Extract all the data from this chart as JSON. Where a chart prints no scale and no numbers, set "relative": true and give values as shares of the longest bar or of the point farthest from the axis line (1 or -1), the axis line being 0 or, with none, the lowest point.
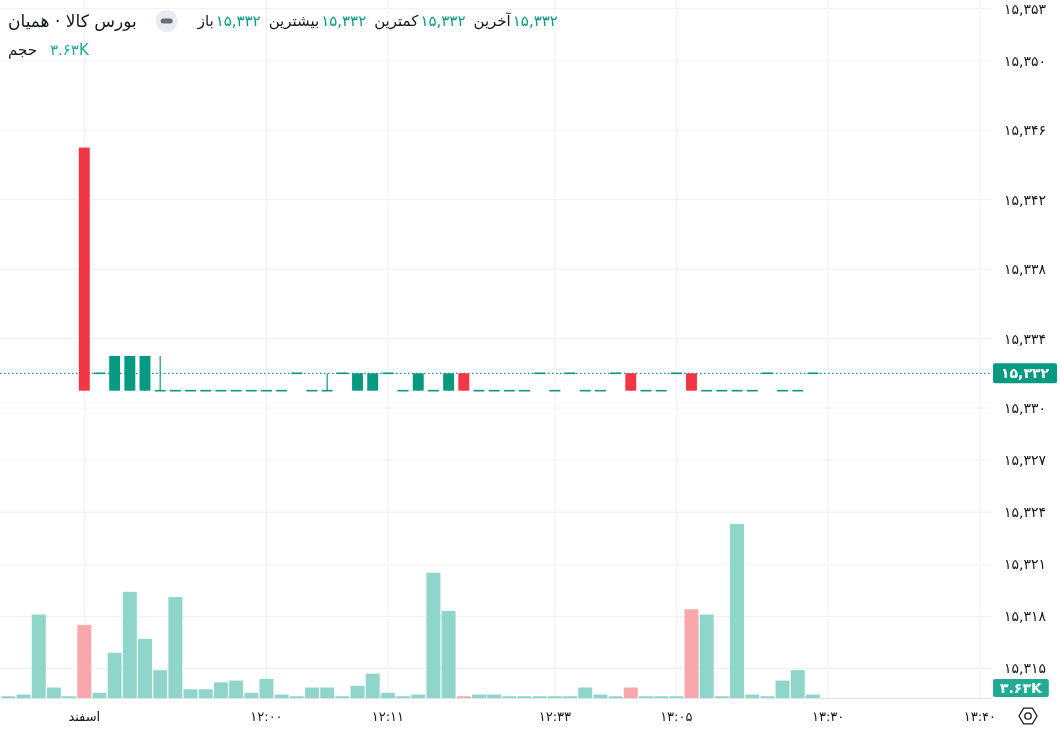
{
  "chart_data": [
    {
      "type": "candlestick",
      "title": "بورس کالا · همیان",
      "categories": [
        null,
        null,
        null,
        null,
        null,
        "اسفند",
        null,
        null,
        null,
        null,
        null,
        null,
        null,
        null,
        null,
        null,
        null,
        "۱۲:۰۰",
        null,
        null,
        null,
        null,
        null,
        null,
        null,
        "۱۲:۱۱",
        null,
        null,
        null,
        null,
        null,
        null,
        null,
        null,
        null,
        null,
        "۱۲:۳۳",
        null,
        null,
        null,
        null,
        null,
        null,
        null,
        "۱۳:۰۵",
        null,
        null,
        null,
        null,
        null,
        null,
        null,
        null,
        null,
        "۱۳:۳۰",
        null,
        null,
        null,
        null,
        null,
        null,
        null,
        null,
        null,
        "۱۳:۴۰"
      ],
      "ohlc": [
        null,
        null,
        null,
        null,
        null,
        [
          15345,
          15345,
          15331,
          15331
        ],
        [
          15332,
          15332,
          15332,
          15332
        ],
        [
          15331,
          15333,
          15331,
          15333
        ],
        [
          15331,
          15333,
          15331,
          15333
        ],
        [
          15331,
          15333,
          15331,
          15333
        ],
        [
          15331,
          15333,
          15331,
          15331
        ],
        [
          15331,
          15331,
          15331,
          15331
        ],
        [
          15331,
          15331,
          15331,
          15331
        ],
        [
          15331,
          15331,
          15331,
          15331
        ],
        [
          15331,
          15331,
          15331,
          15331
        ],
        [
          15331,
          15331,
          15331,
          15331
        ],
        [
          15331,
          15331,
          15331,
          15331
        ],
        [
          15331,
          15331,
          15331,
          15331
        ],
        [
          15331,
          15331,
          15331,
          15331
        ],
        [
          15332,
          15332,
          15332,
          15332
        ],
        [
          15331,
          15331,
          15331,
          15331
        ],
        [
          15331,
          15332,
          15331,
          15331
        ],
        [
          15332,
          15332,
          15332,
          15332
        ],
        [
          15331,
          15332,
          15331,
          15332
        ],
        [
          15331,
          15332,
          15331,
          15332
        ],
        [
          15332,
          15332,
          15332,
          15332
        ],
        [
          15331,
          15331,
          15331,
          15331
        ],
        [
          15331,
          15332,
          15331,
          15332
        ],
        [
          15331,
          15331,
          15331,
          15331
        ],
        [
          15331,
          15332,
          15331,
          15332
        ],
        [
          15332,
          15332,
          15331,
          15331
        ],
        [
          15331,
          15331,
          15331,
          15331
        ],
        [
          15331,
          15331,
          15331,
          15331
        ],
        [
          15331,
          15331,
          15331,
          15331
        ],
        [
          15331,
          15331,
          15331,
          15331
        ],
        [
          15332,
          15332,
          15332,
          15332
        ],
        [
          15331,
          15331,
          15331,
          15331
        ],
        [
          15332,
          15332,
          15332,
          15332
        ],
        [
          15331,
          15331,
          15331,
          15331
        ],
        [
          15331,
          15331,
          15331,
          15331
        ],
        [
          15332,
          15332,
          15332,
          15332
        ],
        [
          15332,
          15332,
          15331,
          15331
        ],
        [
          15331,
          15331,
          15331,
          15331
        ],
        [
          15331,
          15331,
          15331,
          15331
        ],
        [
          15332,
          15332,
          15332,
          15332
        ],
        [
          15332,
          15332,
          15331,
          15331
        ],
        [
          15331,
          15331,
          15331,
          15331
        ],
        [
          15331,
          15331,
          15331,
          15331
        ],
        [
          15331,
          15331,
          15331,
          15331
        ],
        [
          15331,
          15331,
          15331,
          15331
        ],
        [
          15332,
          15332,
          15332,
          15332
        ],
        [
          15331,
          15331,
          15331,
          15331
        ],
        [
          15331,
          15331,
          15331,
          15331
        ],
        [
          15332,
          15332,
          15332,
          15332
        ],
        null,
        null,
        null,
        null,
        null,
        null,
        null,
        null,
        null,
        null,
        null
      ],
      "colors": [
        null,
        null,
        null,
        null,
        null,
        "#f23645",
        "#089981",
        "#089981",
        "#089981",
        "#089981",
        "#089981",
        "#089981",
        "#089981",
        "#089981",
        "#089981",
        "#089981",
        "#089981",
        "#089981",
        "#089981",
        "#089981",
        "#089981",
        "#089981",
        "#089981",
        "#089981",
        "#089981",
        "#089981",
        "#089981",
        "#089981",
        "#089981",
        "#089981",
        "#f23645",
        "#089981",
        "#089981",
        "#089981",
        "#089981",
        "#089981",
        "#089981",
        "#089981",
        "#089981",
        "#089981",
        "#089981",
        "#f23645",
        "#089981",
        "#089981",
        "#089981",
        "#f23645",
        "#089981",
        "#089981",
        "#089981",
        "#089981",
        "#089981",
        "#089981",
        "#089981",
        "#089981",
        null,
        null,
        null,
        null,
        null,
        null,
        null,
        null,
        null,
        null,
        null
      ],
      "ylim": [
        15313.3,
        15353.5
      ],
      "yticks": [
        {
          "value": 15315,
          "label": "۱۵,۳۱۵"
        },
        {
          "value": 15318,
          "label": "۱۵,۳۱۸"
        },
        {
          "value": 15321,
          "label": "۱۵,۳۲۱"
        },
        {
          "value": 15324,
          "label": "۱۵,۳۲۴"
        },
        {
          "value": 15327,
          "label": "۱۵,۳۲۷"
        },
        {
          "value": 15330,
          "label": "۱۵,۳۳۰"
        },
        {
          "value": 15334,
          "label": "۱۵,۳۳۴"
        },
        {
          "value": 15338,
          "label": "۱۵,۳۳۸"
        },
        {
          "value": 15342,
          "label": "۱۵,۳۴۲"
        },
        {
          "value": 15346,
          "label": "۱۵,۳۴۶"
        },
        {
          "value": 15350,
          "label": "۱۵,۳۵۰"
        },
        {
          "value": 15353,
          "label": "۱۵,۳۵۳"
        }
      ],
      "grid": true,
      "ref_lines": [
        {
          "axis": "y",
          "value": 15332,
          "label": "۱۵,۳۳۲",
          "color": "#089981",
          "line_style": "dotted"
        }
      ],
      "annotations": [
        "باز",
        "۱۵,۳۳۲",
        "بیشترین",
        "۱۵,۳۳۲",
        "کمترین",
        "۱۵,۳۳۲",
        "آخرین",
        "۱۵,۳۳۲"
      ]
    },
    {
      "type": "bar",
      "title": "حجم",
      "relative": true,
      "categories": [
        null,
        null,
        null,
        null,
        null,
        null,
        null,
        null,
        null,
        null,
        null,
        null,
        null,
        null,
        null,
        null,
        null,
        null,
        null,
        null,
        null,
        null,
        null,
        null,
        null,
        null,
        null,
        null,
        null,
        null,
        null,
        null,
        null,
        null,
        null,
        null,
        null,
        null,
        null,
        null,
        null,
        null,
        null,
        null,
        null,
        null,
        null,
        null,
        null,
        null,
        null,
        null,
        null,
        null,
        null,
        null,
        null,
        null,
        null,
        null,
        null,
        null,
        null,
        null,
        null
      ],
      "values": [
        0.01,
        0.02,
        0.48,
        0.06,
        0.01,
        0.42,
        0.03,
        0.26,
        0.61,
        0.34,
        0.16,
        0.58,
        0.05,
        0.05,
        0.09,
        0.1,
        0.03,
        0.11,
        0.02,
        0.01,
        0.06,
        0.06,
        0.01,
        0.07,
        0.14,
        0.03,
        0.01,
        0.02,
        0.72,
        0.5,
        0.01,
        0.02,
        0.02,
        0.01,
        0.01,
        0.01,
        0.01,
        0.01,
        0.06,
        0.02,
        0.01,
        0.06,
        0.01,
        0.01,
        0.01,
        0.51,
        0.48,
        0.01,
        1,
        0.02,
        0.01,
        0.1,
        0.16,
        0.02,
        null,
        null,
        null,
        null,
        null,
        null,
        null,
        null,
        null,
        null,
        null
      ],
      "colors": [
        "#8fd5c9",
        "#8fd5c9",
        "#8fd5c9",
        "#8fd5c9",
        "#8fd5c9",
        "#f9a6ad",
        "#8fd5c9",
        "#8fd5c9",
        "#8fd5c9",
        "#8fd5c9",
        "#8fd5c9",
        "#8fd5c9",
        "#8fd5c9",
        "#8fd5c9",
        "#8fd5c9",
        "#8fd5c9",
        "#8fd5c9",
        "#8fd5c9",
        "#8fd5c9",
        "#8fd5c9",
        "#8fd5c9",
        "#8fd5c9",
        "#8fd5c9",
        "#8fd5c9",
        "#8fd5c9",
        "#8fd5c9",
        "#8fd5c9",
        "#8fd5c9",
        "#8fd5c9",
        "#8fd5c9",
        "#f9a6ad",
        "#8fd5c9",
        "#8fd5c9",
        "#8fd5c9",
        "#8fd5c9",
        "#8fd5c9",
        "#8fd5c9",
        "#8fd5c9",
        "#8fd5c9",
        "#8fd5c9",
        "#8fd5c9",
        "#f9a6ad",
        "#8fd5c9",
        "#8fd5c9",
        "#8fd5c9",
        "#f9a6ad",
        "#8fd5c9",
        "#8fd5c9",
        "#8fd5c9",
        "#8fd5c9",
        "#8fd5c9",
        "#8fd5c9",
        "#8fd5c9",
        "#8fd5c9",
        null,
        null,
        null,
        null,
        null,
        null,
        null,
        null,
        null,
        null,
        null
      ],
      "annotations": [
        "۳.۶۳K",
        "۳.۶۳K"
      ]
    }
  ]
}
